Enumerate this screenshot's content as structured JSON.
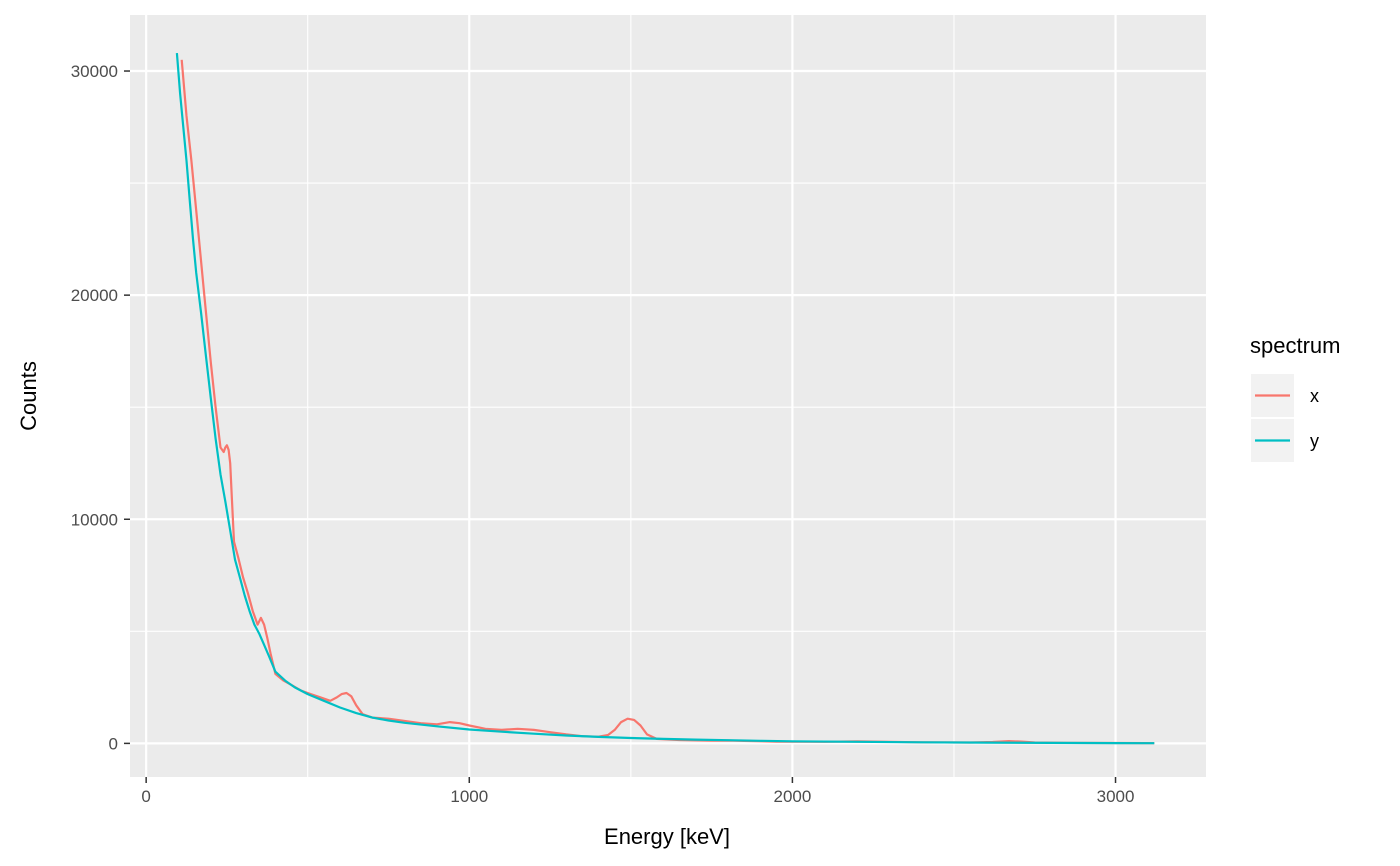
{
  "chart_data": {
    "type": "line",
    "xlabel": "Energy [keV]",
    "ylabel": "Counts",
    "xlim": [
      -50,
      3280
    ],
    "ylim": [
      -1500,
      32500
    ],
    "x_ticks": [
      0,
      1000,
      2000,
      3000
    ],
    "x_tick_labels": [
      "0",
      "1000",
      "2000",
      "3000"
    ],
    "x_minor": [
      500,
      1500,
      2500
    ],
    "y_ticks": [
      0,
      10000,
      20000,
      30000
    ],
    "y_tick_labels": [
      "0",
      "10000",
      "20000",
      "30000"
    ],
    "y_minor": [
      5000,
      15000,
      25000
    ],
    "grid": true,
    "legend": {
      "title": "spectrum",
      "placement": "right"
    },
    "colors": {
      "panel": "#EBEBEB",
      "grid": "#FFFFFF"
    },
    "series": [
      {
        "name": "x",
        "color": "#F8766D",
        "points": [
          [
            110,
            30500
          ],
          [
            125,
            28000
          ],
          [
            140,
            26000
          ],
          [
            160,
            23000
          ],
          [
            180,
            20000
          ],
          [
            200,
            17000
          ],
          [
            215,
            15000
          ],
          [
            230,
            13200
          ],
          [
            240,
            13000
          ],
          [
            245,
            13200
          ],
          [
            250,
            13300
          ],
          [
            255,
            13100
          ],
          [
            260,
            12500
          ],
          [
            265,
            11000
          ],
          [
            272,
            9000
          ],
          [
            285,
            8300
          ],
          [
            300,
            7400
          ],
          [
            315,
            6700
          ],
          [
            330,
            5900
          ],
          [
            345,
            5300
          ],
          [
            355,
            5600
          ],
          [
            365,
            5300
          ],
          [
            375,
            4700
          ],
          [
            385,
            4000
          ],
          [
            400,
            3100
          ],
          [
            425,
            2800
          ],
          [
            450,
            2600
          ],
          [
            480,
            2350
          ],
          [
            510,
            2200
          ],
          [
            540,
            2050
          ],
          [
            570,
            1900
          ],
          [
            590,
            2050
          ],
          [
            605,
            2200
          ],
          [
            620,
            2250
          ],
          [
            635,
            2100
          ],
          [
            650,
            1700
          ],
          [
            670,
            1300
          ],
          [
            700,
            1150
          ],
          [
            750,
            1100
          ],
          [
            800,
            1000
          ],
          [
            850,
            900
          ],
          [
            900,
            850
          ],
          [
            940,
            950
          ],
          [
            970,
            900
          ],
          [
            1000,
            800
          ],
          [
            1050,
            650
          ],
          [
            1100,
            600
          ],
          [
            1150,
            650
          ],
          [
            1200,
            600
          ],
          [
            1250,
            500
          ],
          [
            1300,
            400
          ],
          [
            1350,
            320
          ],
          [
            1400,
            300
          ],
          [
            1430,
            380
          ],
          [
            1450,
            600
          ],
          [
            1470,
            950
          ],
          [
            1490,
            1100
          ],
          [
            1510,
            1050
          ],
          [
            1530,
            800
          ],
          [
            1550,
            400
          ],
          [
            1580,
            200
          ],
          [
            1650,
            150
          ],
          [
            1750,
            120
          ],
          [
            1800,
            130
          ],
          [
            1850,
            110
          ],
          [
            1950,
            80
          ],
          [
            2100,
            70
          ],
          [
            2200,
            90
          ],
          [
            2300,
            70
          ],
          [
            2400,
            50
          ],
          [
            2550,
            40
          ],
          [
            2620,
            60
          ],
          [
            2670,
            100
          ],
          [
            2710,
            80
          ],
          [
            2750,
            40
          ],
          [
            2850,
            20
          ],
          [
            3000,
            15
          ],
          [
            3120,
            10
          ]
        ]
      },
      {
        "name": "y",
        "color": "#00BFC4",
        "points": [
          [
            95,
            30800
          ],
          [
            105,
            29000
          ],
          [
            115,
            27500
          ],
          [
            125,
            26000
          ],
          [
            135,
            24200
          ],
          [
            145,
            22500
          ],
          [
            155,
            21000
          ],
          [
            170,
            19200
          ],
          [
            185,
            17300
          ],
          [
            200,
            15400
          ],
          [
            215,
            13600
          ],
          [
            230,
            12000
          ],
          [
            245,
            10800
          ],
          [
            260,
            9500
          ],
          [
            275,
            8200
          ],
          [
            290,
            7400
          ],
          [
            305,
            6600
          ],
          [
            320,
            5900
          ],
          [
            335,
            5300
          ],
          [
            350,
            4900
          ],
          [
            365,
            4400
          ],
          [
            380,
            3900
          ],
          [
            400,
            3200
          ],
          [
            430,
            2800
          ],
          [
            460,
            2500
          ],
          [
            500,
            2200
          ],
          [
            550,
            1900
          ],
          [
            600,
            1600
          ],
          [
            650,
            1350
          ],
          [
            700,
            1150
          ],
          [
            750,
            1020
          ],
          [
            800,
            920
          ],
          [
            900,
            760
          ],
          [
            1000,
            620
          ],
          [
            1100,
            520
          ],
          [
            1200,
            430
          ],
          [
            1300,
            350
          ],
          [
            1400,
            290
          ],
          [
            1500,
            240
          ],
          [
            1600,
            200
          ],
          [
            1700,
            170
          ],
          [
            1800,
            140
          ],
          [
            1900,
            115
          ],
          [
            2000,
            95
          ],
          [
            2200,
            70
          ],
          [
            2400,
            50
          ],
          [
            2600,
            35
          ],
          [
            2800,
            20
          ],
          [
            3000,
            12
          ],
          [
            3120,
            8
          ]
        ]
      }
    ]
  }
}
